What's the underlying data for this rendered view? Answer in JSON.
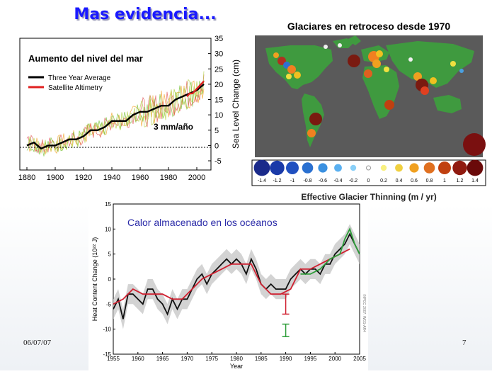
{
  "slide": {
    "title": "Mas  evidencia...",
    "date": "06/07/07",
    "number": "7"
  },
  "sea_level": {
    "title": "Aumento del nivel del mar",
    "legend": [
      "Three Year Average",
      "Satellite Altimetry"
    ],
    "annotation": "3 mm/año",
    "ylabel": "Sea Level Change (cm)",
    "xticks": [
      "1880",
      "1900",
      "1920",
      "1940",
      "1960",
      "1980",
      "2000"
    ],
    "yticks": [
      "35",
      "30",
      "25",
      "20",
      "15",
      "10",
      "5",
      "0",
      "-5"
    ]
  },
  "glacier": {
    "title": "Glaciares en retroceso desde 1970",
    "scale_labels": [
      "-1.4",
      "-1.2",
      "-1",
      "-0.8",
      "-0.6",
      "-0.4",
      "-0.2",
      "0",
      "0.2",
      "0.4",
      "0.6",
      "0.8",
      "1",
      "1.2",
      "1.4"
    ],
    "scale_title": "Effective Glacier Thinning (m / yr)",
    "colors": {
      "ocean": "#5a5a5a",
      "land": "#3f9a3f"
    }
  },
  "heat": {
    "title": "Calor almacenado en los océanos",
    "ylabel": "Heat Content Change (10²² J)",
    "xlabel": "Year",
    "xticks": [
      "1955",
      "1960",
      "1965",
      "1970",
      "1975",
      "1980",
      "1985",
      "1990",
      "1995",
      "2000",
      "2005"
    ],
    "yticks": [
      "15",
      "10",
      "5",
      "0",
      "-5",
      "-10",
      "-15"
    ],
    "credit": "©IPCC 2007: WG1-AR4",
    "colors": {
      "black": "#111111",
      "red": "#d02030",
      "green": "#2e9e3a",
      "band": "#c8c8c8"
    }
  },
  "chart_data": [
    {
      "type": "line",
      "title": "Aumento del nivel del mar",
      "ylabel": "Sea Level Change (cm)",
      "xlim": [
        1875,
        2010
      ],
      "ylim": [
        -8,
        35
      ],
      "series": [
        {
          "name": "Three Year Average",
          "x": [
            1880,
            1885,
            1890,
            1895,
            1900,
            1905,
            1910,
            1915,
            1920,
            1925,
            1930,
            1935,
            1940,
            1945,
            1950,
            1955,
            1960,
            1965,
            1970,
            1975,
            1980,
            1985,
            1990,
            1995,
            2000,
            2005
          ],
          "values": [
            0,
            1,
            -1,
            0,
            0,
            1,
            2,
            2,
            3,
            5,
            5,
            6,
            8,
            8,
            8,
            10,
            11,
            11,
            12,
            13,
            13,
            15,
            16,
            17,
            18,
            20
          ]
        },
        {
          "name": "Satellite Altimetry",
          "x": [
            1993,
            1995,
            1997,
            1999,
            2001,
            2003,
            2005
          ],
          "values": [
            16,
            17,
            17,
            18,
            19,
            20,
            21
          ]
        }
      ]
    },
    {
      "type": "line",
      "title": "Calor almacenado en los océanos",
      "xlabel": "Year",
      "ylabel": "Heat Content Change (10²² J)",
      "xlim": [
        1955,
        2005
      ],
      "ylim": [
        -15,
        15
      ],
      "series": [
        {
          "x": [
            1955,
            1956,
            1957,
            1958,
            1959,
            1960,
            1961,
            1962,
            1963,
            1964,
            1965,
            1966,
            1967,
            1968,
            1969,
            1970,
            1971,
            1972,
            1973,
            1974,
            1975,
            1976,
            1977,
            1978,
            1979,
            1980,
            1981,
            1982,
            1983,
            1984,
            1985,
            1986,
            1987,
            1988,
            1989,
            1990,
            1991,
            1992,
            1993,
            1994,
            1995,
            1996,
            1997,
            1998,
            1999,
            2000,
            2001,
            2002,
            2003,
            2004,
            2005
          ],
          "values": [
            -6,
            -4,
            -8,
            -3,
            -3,
            -4,
            -5,
            -2,
            -2,
            -4,
            -5,
            -7,
            -4,
            -6,
            -4,
            -4,
            -2,
            0,
            1,
            -1,
            1,
            2,
            3,
            4,
            3,
            4,
            3,
            1,
            4,
            2,
            -1,
            -2,
            -1,
            -2,
            -2,
            -2,
            0,
            1,
            2,
            1,
            2,
            2,
            1,
            3,
            3,
            5,
            6,
            7,
            9,
            7,
            5
          ]
        },
        {
          "x": [
            1955,
            1957,
            1959,
            1961,
            1963,
            1965,
            1967,
            1969,
            1971,
            1973,
            1975,
            1977,
            1979,
            1981,
            1983,
            1985,
            1987,
            1989,
            1991,
            1993,
            1995,
            1997,
            1999,
            2001,
            2003
          ],
          "values": [
            -5,
            -4,
            -2,
            -3,
            -3,
            -3,
            -4,
            -4,
            -2,
            0,
            1,
            2,
            3,
            3,
            3,
            -1,
            -3,
            -3,
            -2,
            2,
            2,
            3,
            4,
            5,
            6
          ]
        },
        {
          "x": [
            1993,
            1995,
            1997,
            1999,
            2001,
            2002,
            2003,
            2004,
            2005
          ],
          "values": [
            1,
            1,
            2,
            4,
            5,
            8,
            10,
            7,
            5
          ]
        }
      ]
    }
  ]
}
